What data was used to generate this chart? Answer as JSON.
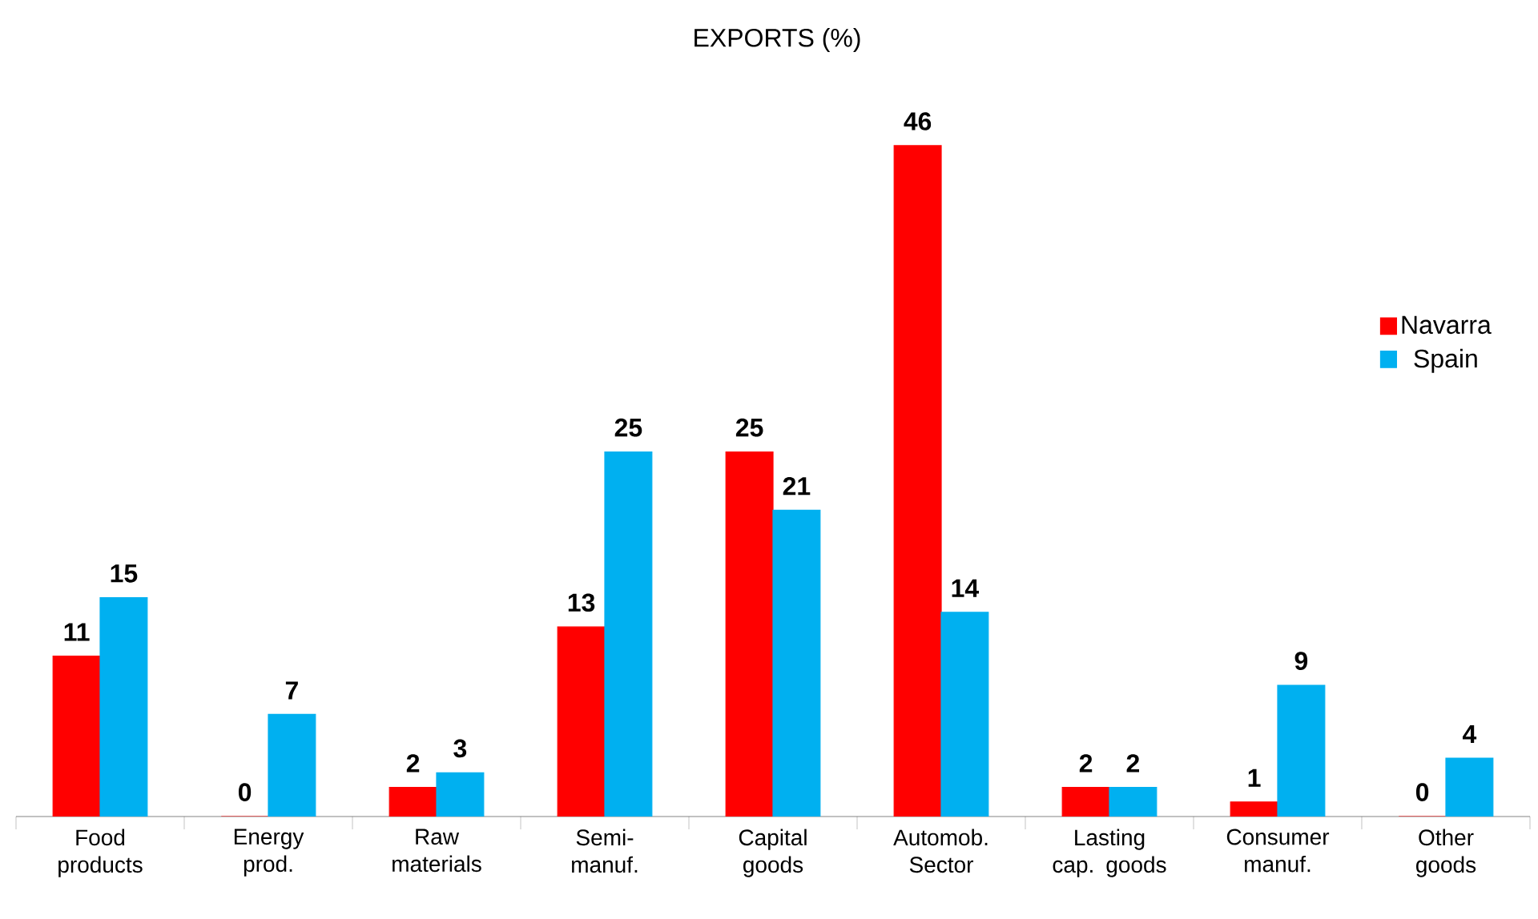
{
  "chart_data": {
    "type": "bar",
    "title": "EXPORTS (%)",
    "categories": [
      "Food products",
      "Energy prod.",
      "Raw materials",
      "Semi-manuf.",
      "Capital goods",
      "Automob. Sector",
      "Lasting cap. goods",
      "Consumer manuf.",
      "Other goods"
    ],
    "series": [
      {
        "name": "Navarra",
        "color": "#ff0000",
        "values": [
          11,
          0,
          2,
          13,
          25,
          46,
          2,
          1,
          0
        ]
      },
      {
        "name": "Spain",
        "color": "#00b0f0",
        "values": [
          15,
          7,
          3,
          25,
          21,
          14,
          2,
          9,
          4
        ]
      }
    ],
    "data_labels": true,
    "legend": "top right",
    "grid": false
  }
}
